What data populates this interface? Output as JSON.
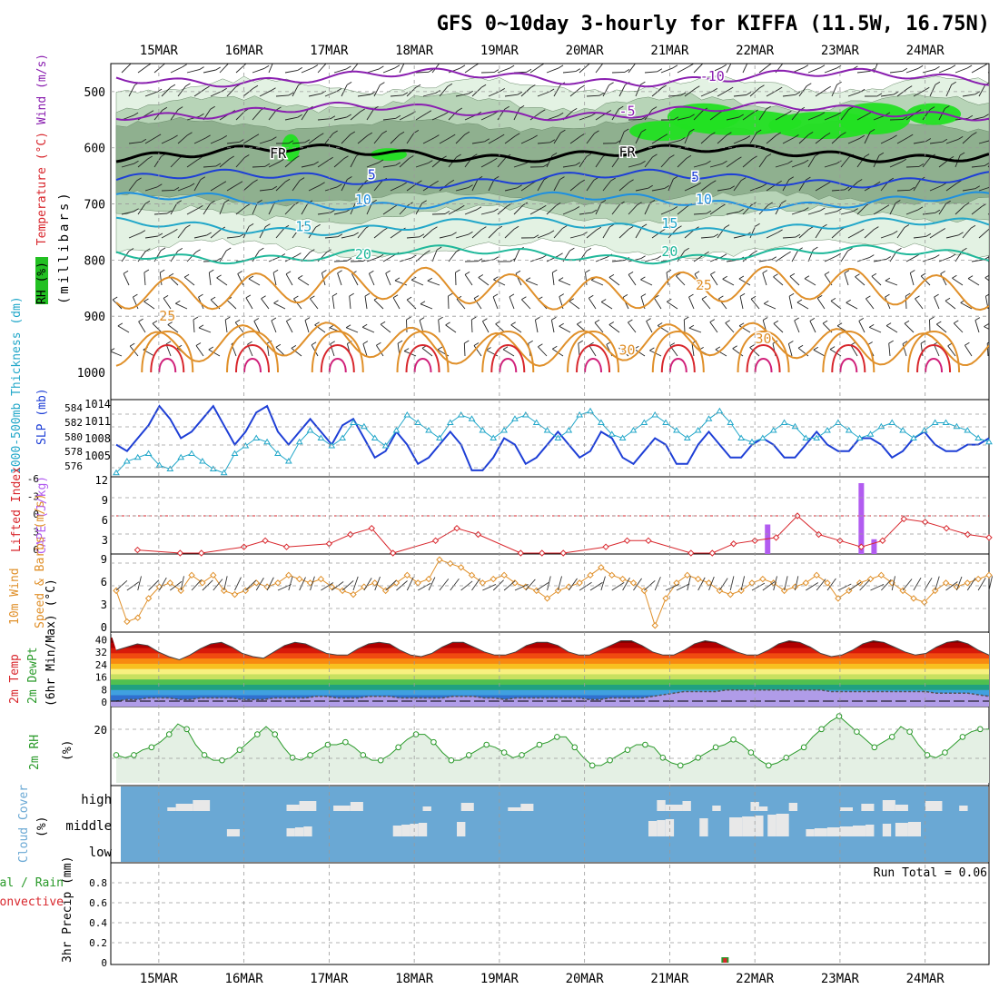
{
  "title": "GFS 0~10day 3-hourly for KIFFA (11.5W, 16.75N)",
  "colors": {
    "purple": "#8a1fb0",
    "blue": "#1e3fd6",
    "cyan": "#22a7c9",
    "teal": "#1fb89a",
    "orange": "#e0902a",
    "red": "#d8262c",
    "magenta": "#d0207a",
    "rh_light": "#e3f2e3",
    "rh_mid": "#b7d4b7",
    "rh_dark": "#8fb08f",
    "rh_bright": "#22e022",
    "cloud": "#6aa8d4",
    "grid": "#9a9a9a"
  },
  "chart_data": [
    {
      "type": "heatmap",
      "panel": "upper-air",
      "title": "Wind (m/s) / Temperature (°C) / RH (%)",
      "ylabel_parts": [
        "RH (%)",
        "Temperature (°C)",
        "Wind (m/s)"
      ],
      "ylabel2": "(millibars)",
      "x_labels": [
        "15MAR",
        "16MAR",
        "17MAR",
        "18MAR",
        "19MAR",
        "20MAR",
        "21MAR",
        "22MAR",
        "23MAR",
        "24MAR"
      ],
      "xlim_days": [
        0,
        10.25
      ],
      "ylim_mb": [
        1000,
        450
      ],
      "y_ticks": [
        500,
        600,
        700,
        800,
        900,
        1000
      ],
      "isotherms": [
        {
          "label": "-10",
          "level_mb": 475
        },
        {
          "label": "-5",
          "level_mb": 535
        },
        {
          "label": "FR",
          "level_mb": 610
        },
        {
          "label": "5",
          "level_mb": 655
        },
        {
          "label": "10",
          "level_mb": 695
        },
        {
          "label": "15",
          "level_mb": 740
        },
        {
          "label": "20",
          "level_mb": 790
        },
        {
          "label": "25",
          "level_mb": 850
        },
        {
          "label": "30",
          "level_mb": 950
        }
      ],
      "contour_labels": [
        "-10",
        "-5",
        "FR",
        "FR",
        "5",
        "5",
        "10",
        "10",
        "15",
        "15",
        "20",
        "20",
        "25",
        "25",
        "30",
        "30"
      ]
    },
    {
      "type": "line",
      "panel": "slp-thickness",
      "ylabel": "SLP (mb)",
      "ylabel2": "1000-500mb Thickness (dm)",
      "left_ticks": [
        "576",
        "578",
        "580",
        "582",
        "584"
      ],
      "right_ticks": [
        "1005",
        "1008",
        "1011",
        "1014"
      ],
      "series": [
        {
          "name": "SLP",
          "color": "#1e3fd6",
          "y_range": [
            1003,
            1015
          ],
          "values": [
            1008,
            1007,
            1009,
            1011,
            1014,
            1012,
            1009,
            1010,
            1012,
            1014,
            1011,
            1008,
            1010,
            1013,
            1014,
            1010,
            1008,
            1010,
            1012,
            1010,
            1008,
            1011,
            1012,
            1009,
            1006,
            1007,
            1010,
            1008,
            1005,
            1006,
            1008,
            1010,
            1008,
            1004,
            1004,
            1006,
            1009,
            1008,
            1005,
            1006,
            1008,
            1010,
            1008,
            1006,
            1007,
            1010,
            1009,
            1006,
            1005,
            1007,
            1009,
            1008,
            1005,
            1005,
            1008,
            1010,
            1008,
            1006,
            1006,
            1008,
            1009,
            1008,
            1006,
            1006,
            1008,
            1010,
            1008,
            1007,
            1007,
            1009,
            1009,
            1008,
            1006,
            1007,
            1009,
            1010,
            1008,
            1007,
            1007,
            1008,
            1008,
            1009
          ]
        },
        {
          "name": "Thickness",
          "color": "#22a7c9",
          "marker": "triangle",
          "y_range": [
            575,
            585
          ],
          "values": [
            575.5,
            577,
            577.5,
            578,
            576.5,
            576,
            577.5,
            578,
            577,
            576,
            575.5,
            578,
            579,
            580,
            579.5,
            578,
            577,
            579.5,
            581,
            580,
            579,
            580,
            582,
            581.5,
            580,
            579,
            581,
            583,
            582,
            581,
            580,
            582,
            583,
            582.5,
            581,
            580,
            581,
            582.5,
            583,
            582,
            581,
            580,
            581,
            583,
            583.5,
            582,
            580.5,
            580,
            581,
            582,
            583,
            582,
            581,
            580,
            581,
            582.5,
            583.5,
            582,
            580,
            579.5,
            580,
            581,
            582,
            581.5,
            580,
            580,
            581,
            582,
            581,
            580,
            580.5,
            581.5,
            582,
            581,
            580,
            581,
            582,
            582,
            581.5,
            581,
            580,
            579.5
          ]
        }
      ]
    },
    {
      "type": "bar",
      "panel": "cape-li",
      "ylabel": "Lifted Index",
      "ylabel2": "CAPE (J/kg)",
      "left_ticks": [
        "-6",
        "-3",
        "0",
        "3",
        "6"
      ],
      "right_ticks": [
        "3",
        "6",
        "9",
        "12"
      ],
      "series": [
        {
          "name": "CAPE",
          "color": "#b25cf0",
          "bars": [
            {
              "day": 7.65,
              "value": 5
            },
            {
              "day": 8.75,
              "value": 12
            },
            {
              "day": 8.9,
              "value": 2.5
            }
          ]
        },
        {
          "name": "Lifted Index",
          "color": "#d8262c",
          "marker": "diamond",
          "points": [
            [
              0.25,
              5.5
            ],
            [
              0.75,
              6
            ],
            [
              1.0,
              6
            ],
            [
              1.5,
              5
            ],
            [
              1.75,
              4
            ],
            [
              2.0,
              5
            ],
            [
              2.5,
              4.5
            ],
            [
              2.75,
              3
            ],
            [
              3.0,
              2
            ],
            [
              3.25,
              6
            ],
            [
              3.75,
              4
            ],
            [
              4.0,
              2
            ],
            [
              4.25,
              3
            ],
            [
              4.75,
              6
            ],
            [
              5.0,
              6
            ],
            [
              5.25,
              6
            ],
            [
              5.75,
              5
            ],
            [
              6.0,
              4
            ],
            [
              6.25,
              4
            ],
            [
              6.75,
              6
            ],
            [
              7.0,
              6
            ],
            [
              7.25,
              4.5
            ],
            [
              7.5,
              4
            ],
            [
              7.75,
              3.5
            ],
            [
              8.0,
              0
            ],
            [
              8.25,
              3
            ],
            [
              8.5,
              4
            ],
            [
              8.75,
              5
            ],
            [
              9.0,
              4
            ],
            [
              9.25,
              0.5
            ],
            [
              9.5,
              1
            ],
            [
              9.75,
              2
            ],
            [
              10.0,
              3
            ],
            [
              10.25,
              3.5
            ]
          ]
        },
        {
          "name": "LI=0 reference",
          "color": "#d8262c",
          "dashed": true
        }
      ]
    },
    {
      "type": "line",
      "panel": "wind-10m",
      "ylabel": "10m Wind",
      "ylabel2": "Speed & Barbs (m/s)",
      "left_ticks": [
        "0",
        "3",
        "6",
        "9"
      ],
      "series": [
        {
          "name": "10m wind speed",
          "color": "#e0902a",
          "marker": "diamond",
          "values": [
            5,
            1,
            1.5,
            4,
            5.5,
            6,
            5,
            7,
            6,
            7,
            5,
            4.5,
            5,
            6,
            5.5,
            6,
            7,
            6.5,
            6,
            6.5,
            5.5,
            5,
            4.5,
            5.5,
            6,
            5,
            6,
            7,
            6,
            6.5,
            9,
            8.5,
            8,
            7,
            6,
            6.5,
            7,
            6,
            5.5,
            5,
            4,
            5,
            5.5,
            6,
            7,
            8,
            7,
            6.5,
            6,
            5,
            0.5,
            4,
            6,
            7,
            6.5,
            6,
            5,
            4.5,
            5,
            6,
            6.5,
            6,
            5,
            5.5,
            6,
            7,
            6,
            4,
            5,
            6,
            6.5,
            7,
            6,
            5,
            4,
            3.5,
            5,
            6,
            5.5,
            6,
            6.5,
            7
          ]
        }
      ]
    },
    {
      "type": "area",
      "panel": "temp-2m",
      "ylabel": "2m Temp",
      "ylabel2": "2m DewPt",
      "ylabel3": "(6hr Min/Max) (°C)",
      "left_ticks": [
        "0",
        "8",
        "16",
        "24",
        "32",
        "40"
      ],
      "series": [
        {
          "name": "2m Temp",
          "values": [
            32,
            34,
            36,
            35,
            31,
            28,
            26,
            29,
            33,
            36,
            37,
            34,
            30,
            28,
            27,
            31,
            35,
            37,
            36,
            33,
            30,
            29,
            29,
            33,
            36,
            37,
            36,
            32,
            29,
            28,
            30,
            34,
            37,
            37,
            34,
            31,
            29,
            29,
            31,
            35,
            37,
            37,
            35,
            31,
            29,
            29,
            32,
            35,
            38,
            38,
            35,
            31,
            29,
            29,
            32,
            36,
            38,
            37,
            34,
            31,
            29,
            29,
            32,
            36,
            38,
            37,
            34,
            30,
            28,
            29,
            32,
            36,
            38,
            37,
            34,
            31,
            29,
            30,
            34,
            37,
            38,
            36,
            32,
            29
          ]
        },
        {
          "name": "2m DewPt",
          "values": [
            0,
            1,
            1,
            2,
            2,
            2,
            1,
            1,
            2,
            2,
            2,
            2,
            1,
            1,
            1,
            2,
            2,
            2,
            2,
            3,
            3,
            2,
            2,
            2,
            3,
            3,
            3,
            2,
            2,
            2,
            2,
            2,
            3,
            3,
            3,
            2,
            2,
            1,
            2,
            2,
            2,
            2,
            2,
            2,
            2,
            1,
            1,
            2,
            2,
            2,
            2,
            3,
            4,
            5,
            6,
            6,
            6,
            6,
            7,
            7,
            7,
            7,
            7,
            7,
            7,
            7,
            7,
            7,
            6,
            6,
            6,
            6,
            6,
            6,
            6,
            6,
            6,
            6,
            5,
            5,
            5,
            5,
            4,
            3
          ]
        }
      ]
    },
    {
      "type": "line",
      "panel": "rh-2m",
      "ylabel": "2m RH",
      "ylabel2": "(%)",
      "left_ticks": [
        "20"
      ],
      "series": [
        {
          "name": "2m RH",
          "color": "#2a9a2a",
          "marker": "circle",
          "values": [
            10,
            9,
            10,
            12,
            13,
            15,
            18,
            22,
            20,
            14,
            10,
            8,
            8,
            9,
            12,
            15,
            18,
            21,
            18,
            13,
            9,
            8,
            10,
            12,
            14,
            14,
            15,
            13,
            10,
            8,
            8,
            10,
            13,
            16,
            18,
            18,
            15,
            11,
            8,
            8,
            10,
            12,
            14,
            13,
            11,
            9,
            10,
            12,
            14,
            15,
            17,
            17,
            13,
            9,
            6,
            6,
            8,
            10,
            12,
            14,
            14,
            13,
            9,
            7,
            6,
            7,
            9,
            11,
            13,
            14,
            16,
            14,
            11,
            8,
            6,
            7,
            9,
            11,
            13,
            17,
            20,
            23,
            25,
            22,
            19,
            16,
            13,
            15,
            17,
            21,
            19,
            14,
            10,
            9,
            11,
            14,
            17,
            19,
            20,
            20
          ]
        }
      ]
    },
    {
      "type": "bar",
      "panel": "cloud-cover",
      "ylabel": "Cloud Cover",
      "ylabel2": "(%)",
      "layer_labels": [
        "high",
        "middle",
        "low"
      ],
      "layers": [
        {
          "name": "high",
          "days": [
            [
              0.6,
              0.7
            ],
            [
              0.7,
              0.9
            ],
            [
              0.9,
              1.1
            ],
            [
              2.0,
              2.15
            ],
            [
              2.15,
              2.35
            ],
            [
              2.55,
              2.75
            ],
            [
              2.75,
              2.9
            ],
            [
              3.6,
              3.7
            ],
            [
              4.05,
              4.2
            ],
            [
              4.6,
              4.75
            ],
            [
              4.75,
              4.9
            ],
            [
              6.35,
              6.45
            ],
            [
              6.45,
              6.65
            ],
            [
              6.65,
              6.75
            ],
            [
              7.0,
              7.1
            ],
            [
              7.45,
              7.55
            ],
            [
              7.55,
              7.65
            ],
            [
              7.9,
              8.0
            ],
            [
              8.5,
              8.65
            ],
            [
              8.75,
              8.9
            ],
            [
              9.0,
              9.15
            ],
            [
              9.15,
              9.3
            ],
            [
              9.5,
              9.7
            ],
            [
              9.9,
              10.0
            ]
          ]
        },
        {
          "name": "middle",
          "days": [
            [
              1.3,
              1.45
            ],
            [
              2.0,
              2.1
            ],
            [
              2.1,
              2.2
            ],
            [
              2.2,
              2.3
            ],
            [
              3.25,
              3.35
            ],
            [
              3.35,
              3.45
            ],
            [
              3.45,
              3.55
            ],
            [
              3.55,
              3.65
            ],
            [
              4.0,
              4.1
            ],
            [
              6.25,
              6.35
            ],
            [
              6.35,
              6.45
            ],
            [
              6.45,
              6.55
            ],
            [
              6.85,
              6.95
            ],
            [
              7.2,
              7.35
            ],
            [
              7.35,
              7.5
            ],
            [
              7.5,
              7.6
            ],
            [
              7.65,
              7.75
            ],
            [
              7.75,
              7.9
            ],
            [
              8.1,
              8.2
            ],
            [
              8.2,
              8.35
            ],
            [
              8.35,
              8.5
            ],
            [
              8.5,
              8.65
            ],
            [
              8.65,
              8.8
            ],
            [
              8.8,
              8.9
            ],
            [
              9.0,
              9.1
            ],
            [
              9.15,
              9.3
            ],
            [
              9.3,
              9.45
            ]
          ]
        }
      ]
    },
    {
      "type": "bar",
      "panel": "precip",
      "ylabel": "3hr Precip (mm)",
      "legend": [
        "Total / Rain",
        "Convective"
      ],
      "left_ticks": [
        "0",
        "0.2",
        "0.4",
        "0.6",
        "0.8"
      ],
      "annotation": "Run Total = 0.06",
      "bars": [
        {
          "day": 7.15,
          "total": 0.06,
          "convective": 0.06
        }
      ]
    }
  ]
}
